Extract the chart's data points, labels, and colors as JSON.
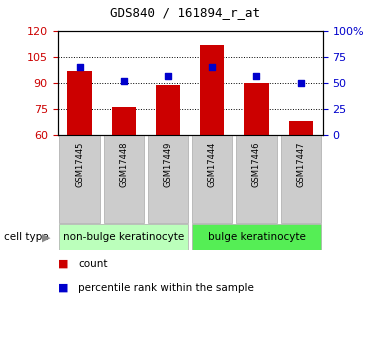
{
  "title": "GDS840 / 161894_r_at",
  "samples": [
    "GSM17445",
    "GSM17448",
    "GSM17449",
    "GSM17444",
    "GSM17446",
    "GSM17447"
  ],
  "counts": [
    97,
    76,
    89,
    112,
    90,
    68
  ],
  "percentiles": [
    65,
    52,
    57,
    65,
    57,
    50
  ],
  "ylim_left": [
    60,
    120
  ],
  "ylim_right": [
    0,
    100
  ],
  "yticks_left": [
    60,
    75,
    90,
    105,
    120
  ],
  "yticks_right": [
    0,
    25,
    50,
    75,
    100
  ],
  "yticklabels_right": [
    "0",
    "25",
    "50",
    "75",
    "100%"
  ],
  "bar_color": "#cc0000",
  "dot_color": "#0000cc",
  "bar_width": 0.55,
  "groups": [
    {
      "label": "non-bulge keratinocyte",
      "indices": [
        0,
        1,
        2
      ],
      "color": "#bbffbb"
    },
    {
      "label": "bulge keratinocyte",
      "indices": [
        3,
        4,
        5
      ],
      "color": "#55ee55"
    }
  ],
  "cell_type_label": "cell type",
  "legend_count_label": "count",
  "legend_percentile_label": "percentile rank within the sample",
  "grid_color": "black",
  "tick_label_color_left": "#cc0000",
  "tick_label_color_right": "#0000cc",
  "bg_plot": "#ffffff",
  "bg_xtick": "#cccccc"
}
